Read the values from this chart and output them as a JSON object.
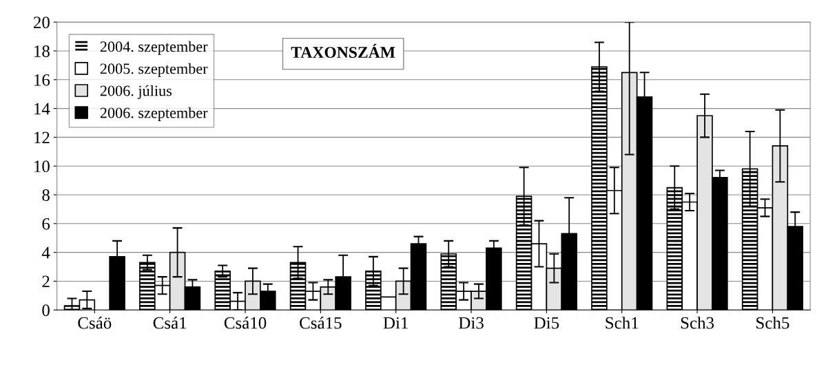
{
  "chart_data": {
    "type": "bar",
    "title": "TAXONSZÁM",
    "categories": [
      "Csáö",
      "Csá1",
      "Csá10",
      "Csá15",
      "Di1",
      "Di3",
      "Di5",
      "Sch1",
      "Sch3",
      "Sch5"
    ],
    "series": [
      {
        "name": "2004. szeptember",
        "color": "#000000",
        "values": [
          0.3,
          3.3,
          2.7,
          3.3,
          2.7,
          3.9,
          7.9,
          16.9,
          8.5,
          9.8
        ],
        "errors": [
          0.5,
          0.5,
          0.4,
          1.1,
          1.0,
          0.9,
          2.0,
          1.7,
          1.5,
          2.6
        ]
      },
      {
        "name": "2005. szeptember",
        "color": "#ffffff",
        "values": [
          0.7,
          1.7,
          0.6,
          1.3,
          0.9,
          1.3,
          4.6,
          8.3,
          7.5,
          7.1
        ],
        "errors": [
          0.6,
          0.6,
          0.6,
          0.6,
          null,
          0.6,
          1.6,
          1.6,
          0.6,
          0.6
        ]
      },
      {
        "name": "2006. július",
        "color": "#e4e4e4",
        "values": [
          null,
          4.0,
          2.0,
          1.6,
          2.0,
          1.3,
          2.9,
          16.5,
          13.5,
          11.4
        ],
        "errors": [
          null,
          1.7,
          0.9,
          0.5,
          0.9,
          0.5,
          1.0,
          [
            10.8,
            20
          ],
          1.5,
          2.5
        ]
      },
      {
        "name": "2006. szeptember",
        "color": "#000000",
        "values": [
          3.7,
          1.6,
          1.3,
          2.3,
          4.6,
          4.3,
          5.3,
          14.8,
          9.2,
          5.8
        ],
        "errors": [
          1.1,
          0.5,
          0.5,
          1.5,
          0.5,
          0.5,
          2.5,
          1.7,
          0.5,
          1.0
        ]
      }
    ],
    "ylim": [
      0,
      20
    ],
    "yticks": [
      0,
      2,
      4,
      6,
      8,
      10,
      12,
      14,
      16,
      18,
      20
    ],
    "grid": "y",
    "legend": "top left"
  }
}
